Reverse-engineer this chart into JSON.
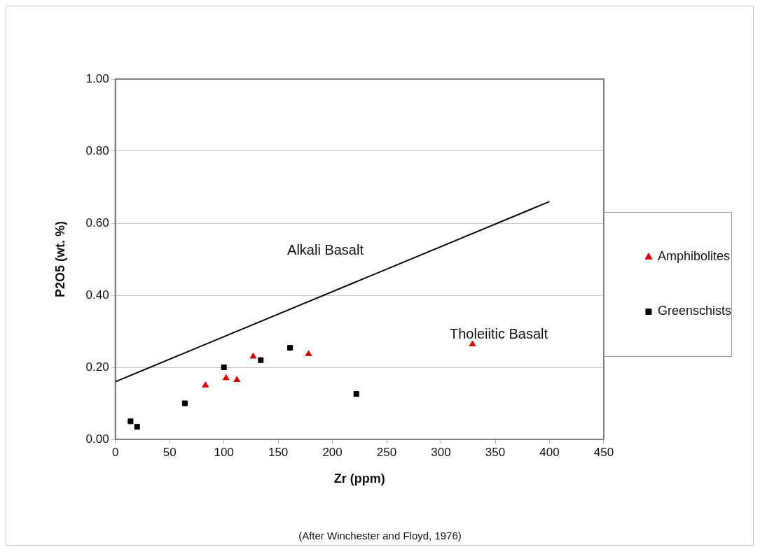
{
  "chart_data": {
    "type": "scatter",
    "xlabel": "Zr (ppm)",
    "ylabel": "P2O5 (wt. %)",
    "xlim": [
      0,
      450
    ],
    "xticks": [
      0,
      50,
      100,
      150,
      200,
      250,
      300,
      350,
      400,
      450
    ],
    "ylim": [
      0,
      1
    ],
    "yticks": [
      {
        "value": 0,
        "label": "0.00"
      },
      {
        "value": 0.2,
        "label": "0.20"
      },
      {
        "value": 0.4,
        "label": "0.40"
      },
      {
        "value": 0.6,
        "label": "0.60"
      },
      {
        "value": 0.8,
        "label": "0.80"
      },
      {
        "value": 1,
        "label": "1.00"
      }
    ],
    "grid": "y",
    "legend": "right",
    "series": [
      {
        "name": "Amphibolites",
        "color": "#e00000",
        "marker": "triangle",
        "x": [
          83,
          102,
          112,
          127,
          178,
          329
        ],
        "values": [
          0.15,
          0.17,
          0.165,
          0.23,
          0.237,
          0.264
        ]
      },
      {
        "name": "Greenschists",
        "color": "#000000",
        "marker": "square",
        "x": [
          14,
          20,
          64,
          100,
          134,
          161,
          222
        ],
        "values": [
          0.05,
          0.035,
          0.1,
          0.2,
          0.22,
          0.254,
          0.126
        ]
      },
      {
        "type": "line",
        "color": "#000000",
        "marker": "none",
        "line_style": "solid",
        "x": [
          0,
          400
        ],
        "values": [
          0.16,
          0.66
        ]
      }
    ],
    "annotations": [
      "Alkali Basalt",
      "Tholeiitic Basalt",
      "(After Winchester and Floyd, 1976)"
    ]
  }
}
